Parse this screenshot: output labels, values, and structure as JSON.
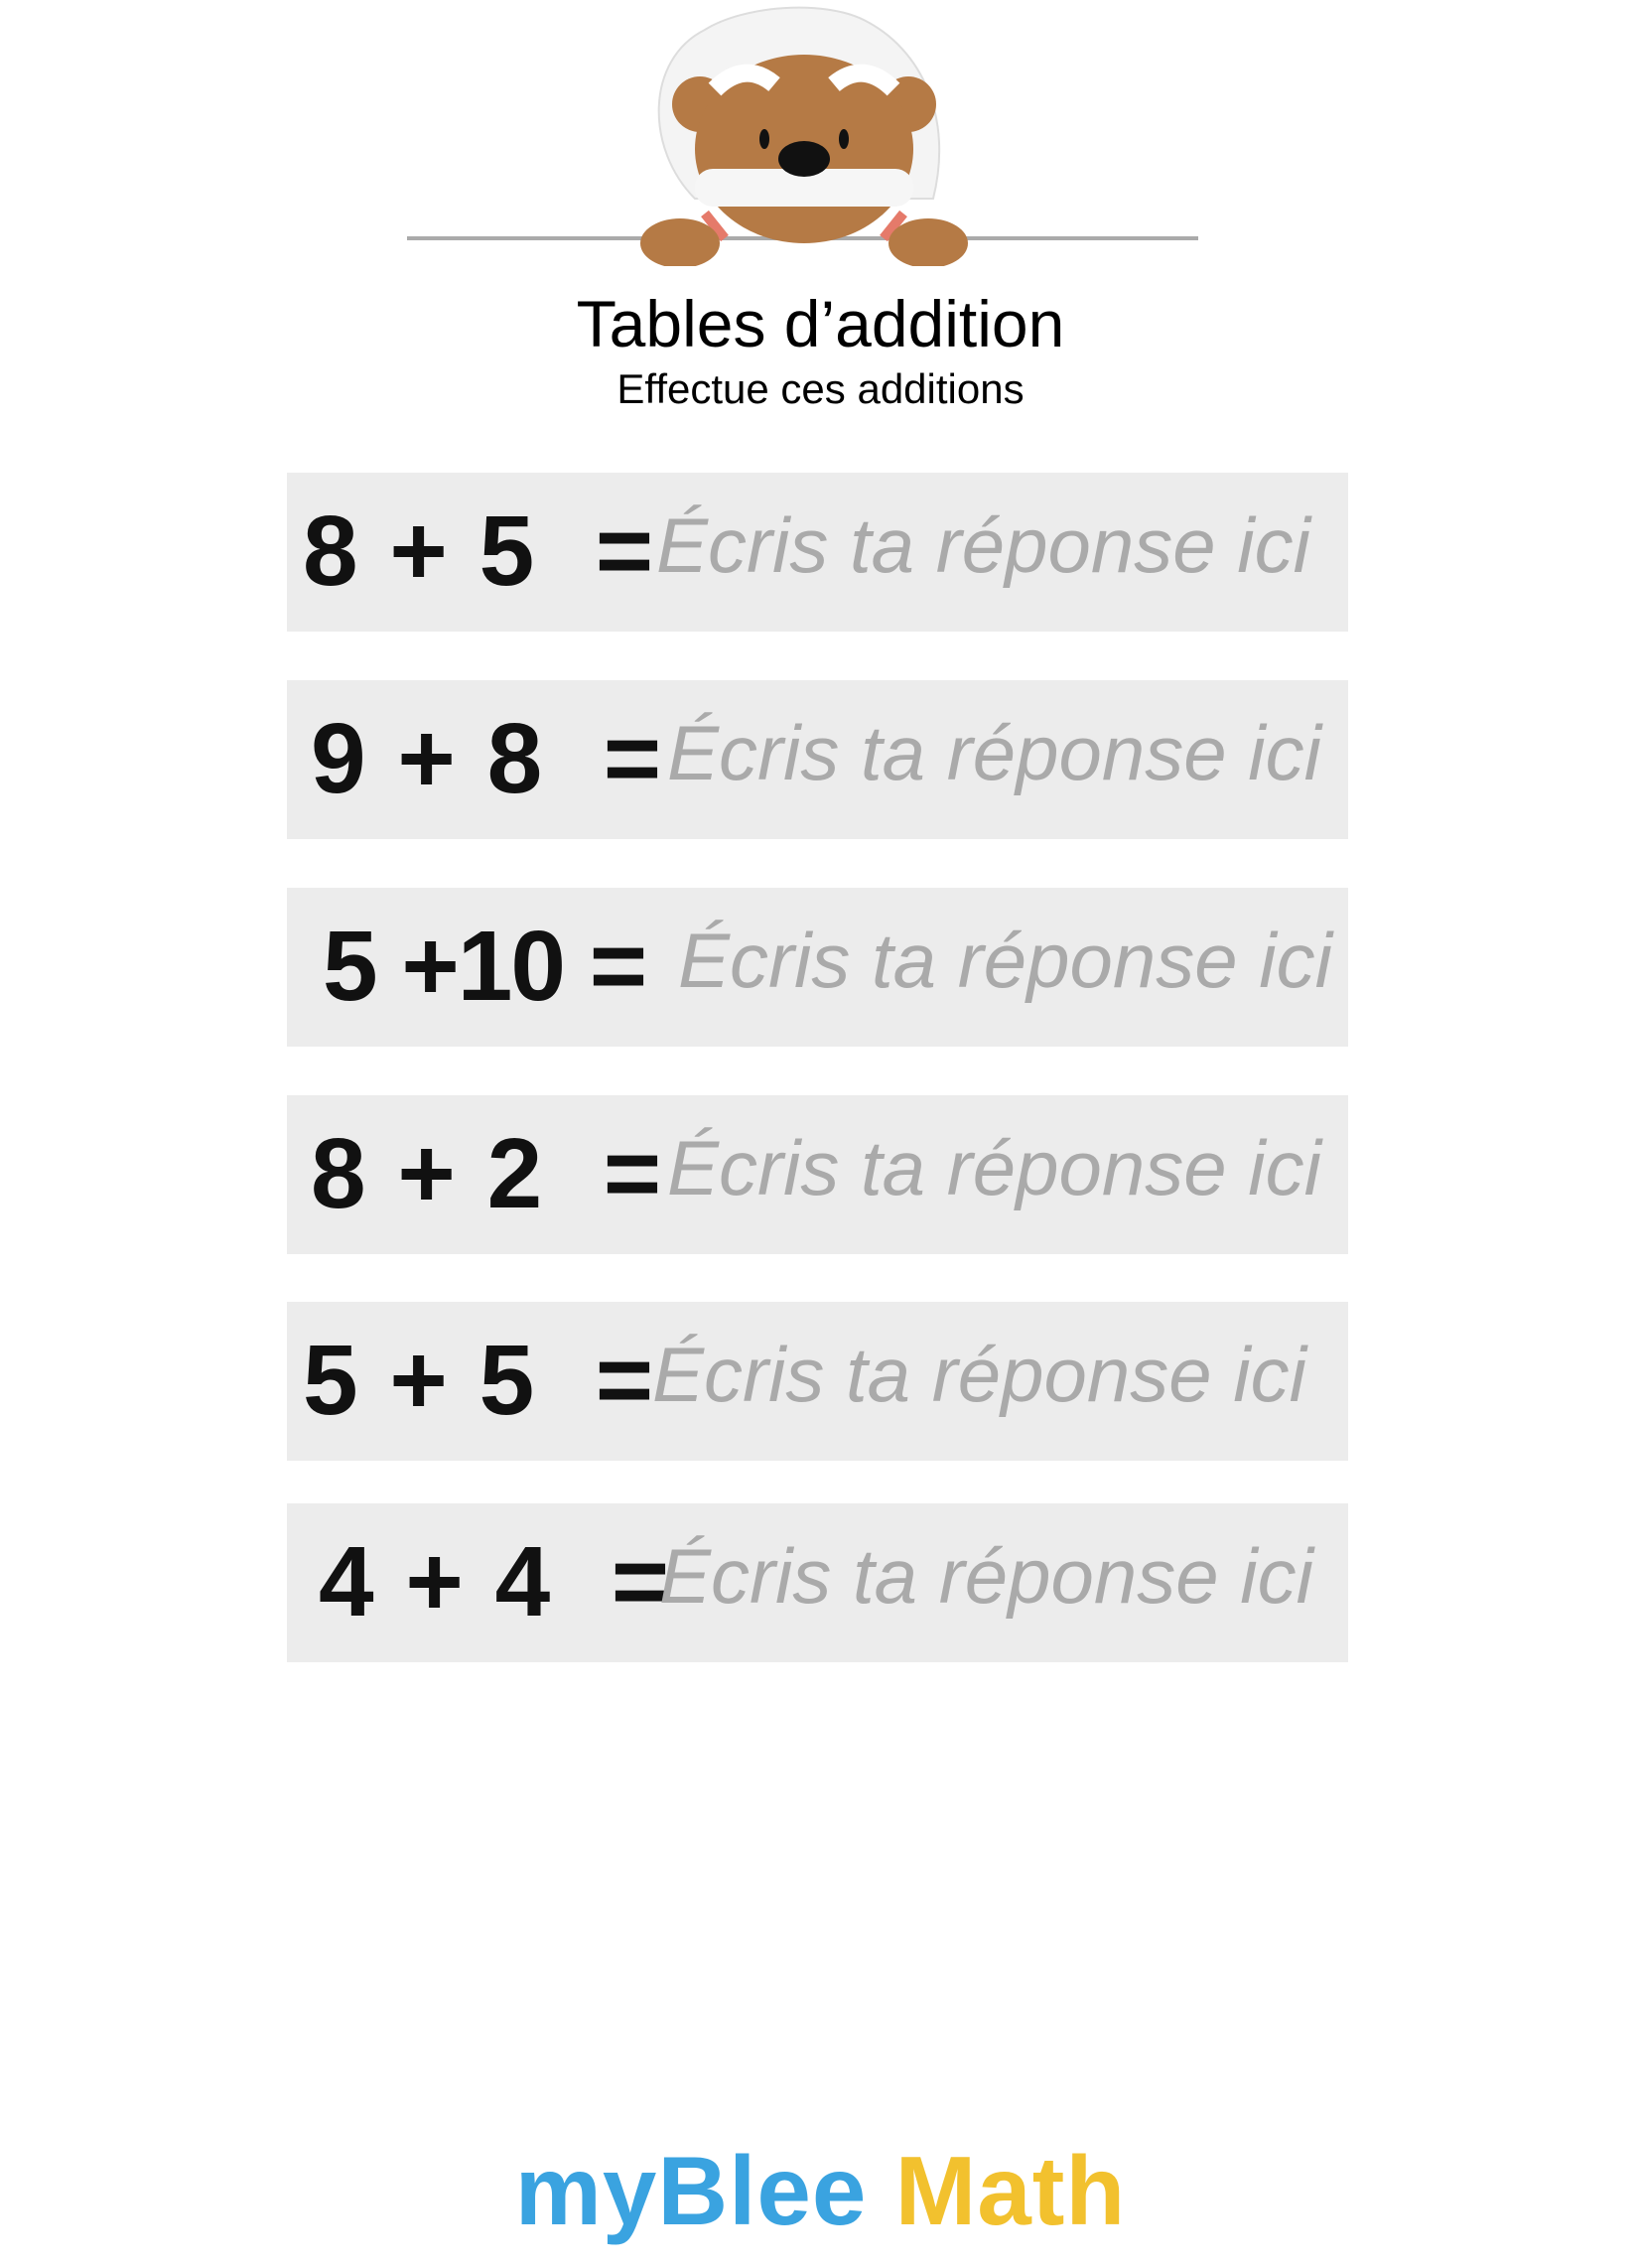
{
  "header": {
    "title": "Tables d’addition",
    "subtitle": "Effectue ces additions"
  },
  "exercises": [
    {
      "equation": "8 + 5  =",
      "placeholder": "Écris ta réponse ici",
      "value": ""
    },
    {
      "equation": "9 + 8  =",
      "placeholder": "Écris ta réponse ici",
      "value": ""
    },
    {
      "equation": "5 +10 =",
      "placeholder": "Écris ta réponse ici",
      "value": ""
    },
    {
      "equation": "8 + 2  =",
      "placeholder": "Écris ta réponse ici",
      "value": ""
    },
    {
      "equation": "5 + 5  =",
      "placeholder": "Écris ta réponse ici",
      "value": ""
    },
    {
      "equation": "4 + 4  =",
      "placeholder": "Écris ta réponse ici",
      "value": ""
    }
  ],
  "footer": {
    "logo_part1": "myBlee",
    "logo_part2": "Math",
    "logo_color1": "#3aa3e0",
    "logo_color2": "#f2c12e"
  },
  "mascot": {
    "icon": "bear-mascot-icon"
  }
}
